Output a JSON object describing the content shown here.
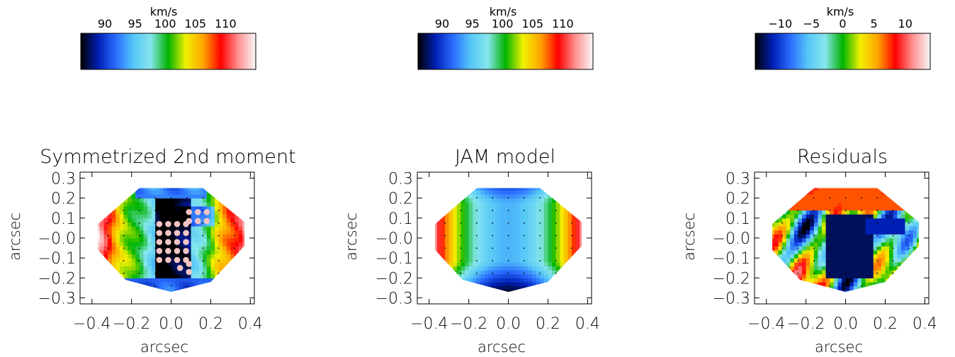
{
  "colors": {
    "bar_stops": [
      "#000000",
      "#001fb4",
      "#2a6cff",
      "#55c6f8",
      "#86e6ec",
      "#00b400",
      "#f0f000",
      "#ffa500",
      "#ff0000",
      "#ff9090",
      "#f8f8f8"
    ],
    "point_marker": "#f2c4c4",
    "data_points": "#000000"
  },
  "chart_data": [
    {
      "type": "heatmap",
      "title": "Symmetrized 2nd moment",
      "xlabel": "arcsec",
      "ylabel": "arcsec",
      "xlim": [
        -0.46,
        0.42
      ],
      "ylim": [
        -0.33,
        0.33
      ],
      "xticks": [
        "−0.4",
        "−0.2",
        "0.0",
        "0.2",
        "0.4"
      ],
      "yticks": [
        "0.3",
        "0.2",
        "0.1",
        "−0.0",
        "−0.1",
        "−0.2",
        "−0.3"
      ],
      "map_kind": "observed",
      "colorbar": {
        "label": "km/s",
        "range": [
          86,
          115
        ],
        "ticks": [
          "90",
          "95",
          "100",
          "105",
          "110"
        ],
        "tick_values": [
          90,
          95,
          100,
          105,
          110
        ]
      }
    },
    {
      "type": "heatmap",
      "title": "JAM model",
      "xlabel": "arcsec",
      "ylabel": "arcsec",
      "xlim": [
        -0.46,
        0.42
      ],
      "ylim": [
        -0.33,
        0.33
      ],
      "xticks": [
        "−0.4",
        "−0.2",
        "0.0",
        "0.2",
        "0.4"
      ],
      "yticks": [
        "0.3",
        "0.2",
        "0.1",
        "−0.0",
        "−0.1",
        "−0.2",
        "−0.3"
      ],
      "map_kind": "model",
      "colorbar": {
        "label": "km/s",
        "range": [
          86,
          115
        ],
        "ticks": [
          "90",
          "95",
          "100",
          "105",
          "110"
        ],
        "tick_values": [
          90,
          95,
          100,
          105,
          110
        ]
      }
    },
    {
      "type": "heatmap",
      "title": "Residuals",
      "xlabel": "arcsec",
      "ylabel": "arcsec",
      "xlim": [
        -0.46,
        0.42
      ],
      "ylim": [
        -0.33,
        0.33
      ],
      "xticks": [
        "−0.4",
        "−0.2",
        "0.0",
        "0.2",
        "0.4"
      ],
      "yticks": [
        "0.3",
        "0.2",
        "0.1",
        "−0.0",
        "−0.1",
        "−0.2",
        "−0.3"
      ],
      "map_kind": "residual",
      "colorbar": {
        "label": "km/s",
        "range": [
          -14,
          14
        ],
        "ticks": [
          "−10",
          "−5",
          "0",
          "5",
          "10"
        ],
        "tick_values": [
          -10,
          -5,
          0,
          5,
          10
        ]
      }
    }
  ]
}
